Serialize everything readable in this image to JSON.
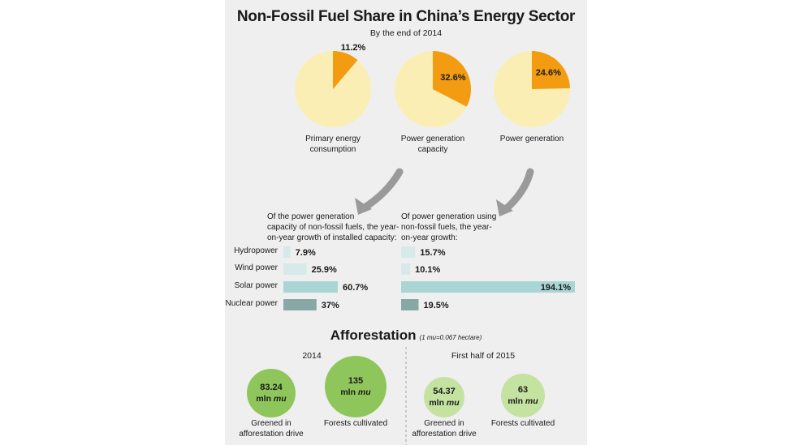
{
  "title": "Non-Fossil Fuel Share in China’s Energy Sector",
  "subtitle": "By the end of 2014",
  "colors": {
    "pie_base": "#fbeeb4",
    "pie_slice": "#f39c12",
    "bar_light": "#d6eaea",
    "bar_mid": "#a9d6d5",
    "bar_dark": "#88a8a6",
    "circle_dark": "#8fc65b",
    "circle_light": "#c4e3a0",
    "arrow": "#9a9a9a"
  },
  "chart_data": [
    {
      "type": "pie",
      "series": [
        {
          "name": "Primary energy consumption",
          "label": "Primary energy\nconsumption",
          "value": 11.2,
          "value_label": "11.2%"
        },
        {
          "name": "Power generation capacity",
          "label": "Power generation\ncapacity",
          "value": 32.6,
          "value_label": "32.6%"
        },
        {
          "name": "Power generation",
          "label": "Power generation",
          "value": 24.6,
          "value_label": "24.6%"
        }
      ]
    },
    {
      "type": "bar",
      "title": "Of the power generation capacity of non-fossil fuels, the year-on-year growth of installed capacity:",
      "title_lines": [
        "Of the power generation",
        "capacity of non-fossil fuels, the year-",
        "on-year growth of installed capacity:"
      ],
      "categories": [
        "Hydropower",
        "Wind power",
        "Solar power",
        "Nuclear power"
      ],
      "values": [
        7.9,
        25.9,
        60.7,
        37
      ],
      "value_labels": [
        "7.9%",
        "25.9%",
        "60.7%",
        "37%"
      ]
    },
    {
      "type": "bar",
      "title": "Of power generation using non-fossil fuels, the year-on-year growth:",
      "title_lines": [
        "Of power generation using",
        "non-fossil fuels, the year-",
        "on-year growth:"
      ],
      "categories": [
        "Hydropower",
        "Wind power",
        "Solar power",
        "Nuclear power"
      ],
      "values": [
        15.7,
        10.1,
        194.1,
        19.5
      ],
      "value_labels": [
        "15.7%",
        "10.1%",
        "194.1%",
        "19.5%"
      ]
    }
  ],
  "afforestation": {
    "title": "Afforestation",
    "note": "(1 mu=0.067 hectare)",
    "unit_prefix": "mln",
    "unit": "mu",
    "periods": [
      {
        "label": "2014",
        "items": [
          {
            "value": "83.24",
            "num": 83.24,
            "label": "Greened in\nafforestation drive"
          },
          {
            "value": "135",
            "num": 135,
            "label": "Forests cultivated"
          }
        ]
      },
      {
        "label": "First half of 2015",
        "items": [
          {
            "value": "54.37",
            "num": 54.37,
            "label": "Greened in\nafforestation drive"
          },
          {
            "value": "63",
            "num": 63,
            "label": "Forests cultivated"
          }
        ]
      }
    ]
  }
}
